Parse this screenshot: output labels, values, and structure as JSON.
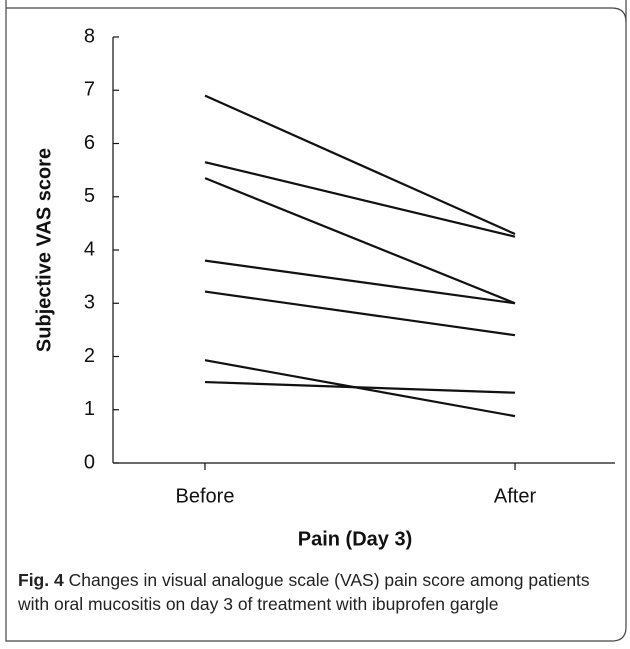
{
  "chart_data": {
    "type": "line",
    "categories": [
      "Before",
      "After"
    ],
    "series": [
      {
        "color": "#111111",
        "values": [
          6.9,
          4.3
        ]
      },
      {
        "color": "#111111",
        "values": [
          5.65,
          4.25
        ]
      },
      {
        "color": "#111111",
        "values": [
          5.35,
          3.0
        ]
      },
      {
        "color": "#111111",
        "values": [
          3.8,
          3.0
        ]
      },
      {
        "color": "#111111",
        "values": [
          3.22,
          2.4
        ]
      },
      {
        "color": "#111111",
        "values": [
          1.93,
          0.88
        ]
      },
      {
        "color": "#111111",
        "values": [
          1.52,
          1.32
        ]
      }
    ],
    "ylim": [
      0,
      8
    ],
    "yticks": [
      0,
      1,
      2,
      3,
      4,
      5,
      6,
      7,
      8
    ],
    "xlabel": "Pain (Day 3)",
    "ylabel": "Subjective VAS score",
    "caption_label": "Fig. 4",
    "caption_text": "Changes in visual analogue scale (VAS) pain score among patients with oral mucositis on day 3 of treatment with ibuprofen gargle"
  }
}
